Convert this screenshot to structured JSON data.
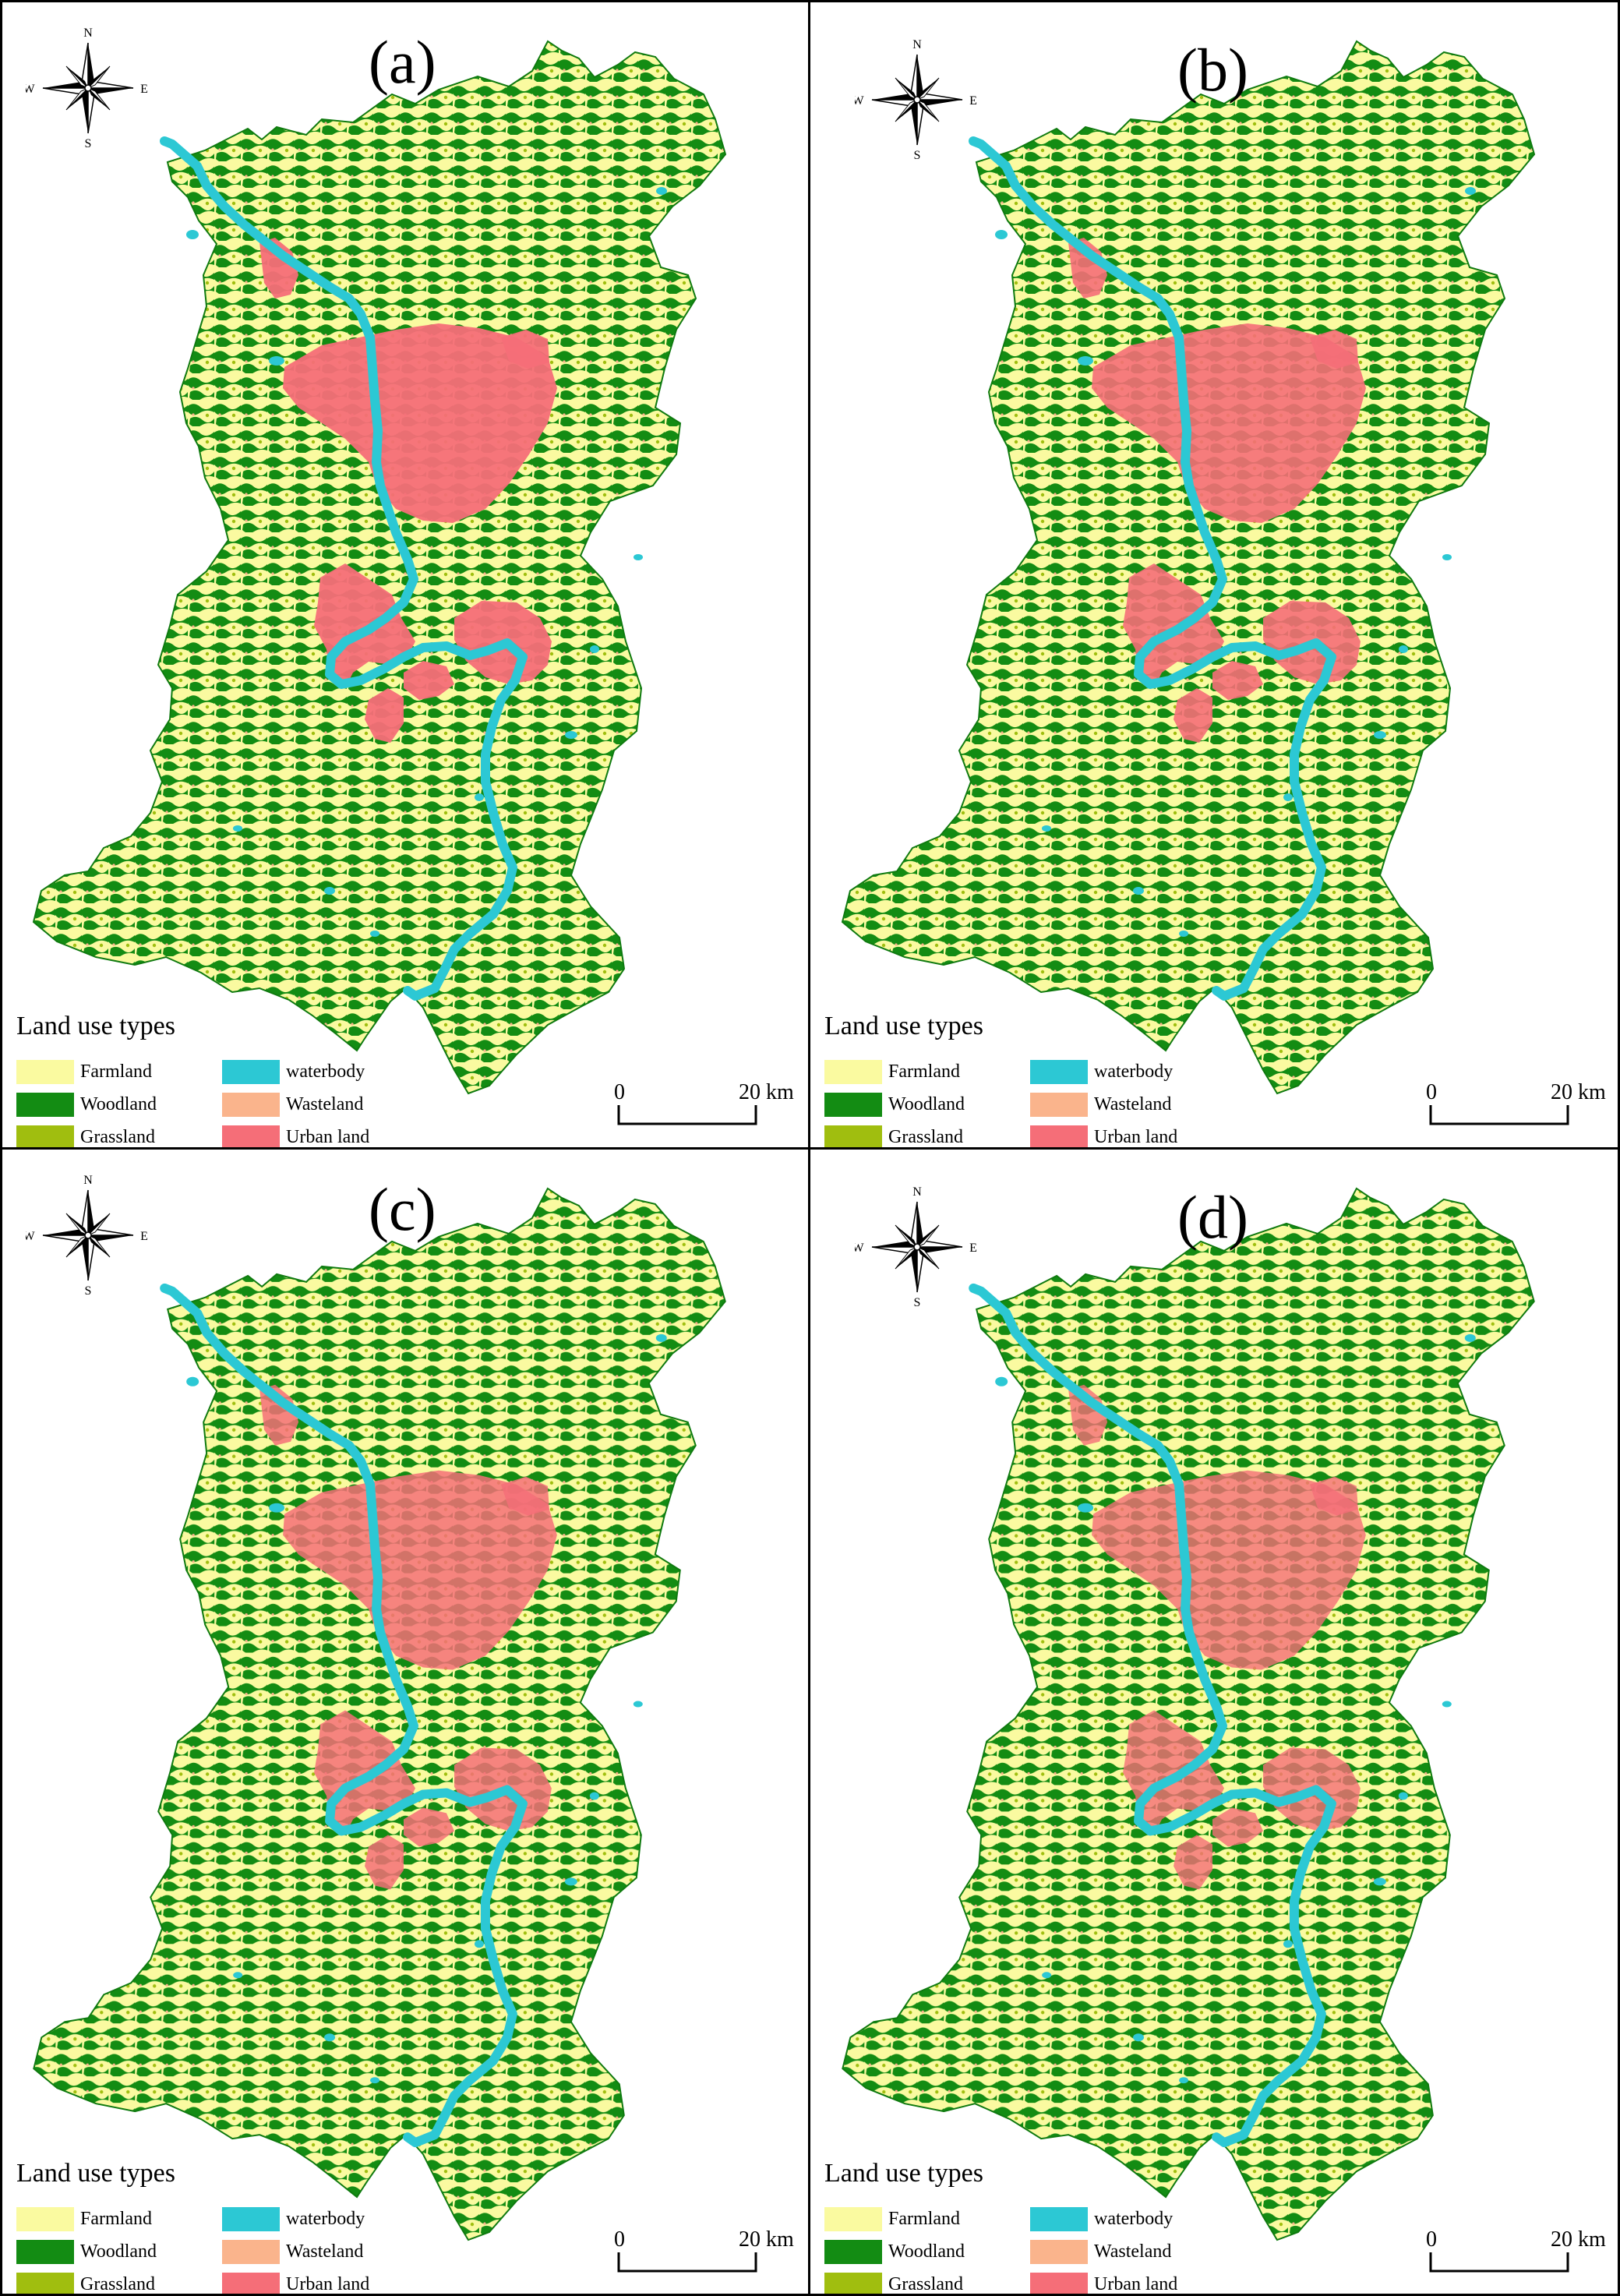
{
  "figure": {
    "panels": [
      {
        "label": "(a)"
      },
      {
        "label": "(b)"
      },
      {
        "label": "(c)"
      },
      {
        "label": "(d)"
      }
    ]
  },
  "compass": {
    "n": "N",
    "s": "S",
    "e": "E",
    "w": "W"
  },
  "legend": {
    "title": "Land use types",
    "items": [
      {
        "label": "Farmland",
        "color": "#fafaa0"
      },
      {
        "label": "Woodland",
        "color": "#138c13"
      },
      {
        "label": "Grassland",
        "color": "#a0be0f"
      },
      {
        "label": "waterbody",
        "color": "#2cc8d4"
      },
      {
        "label": "Wasteland",
        "color": "#fab48c"
      },
      {
        "label": "Urban land",
        "color": "#f56e78"
      }
    ]
  },
  "scalebar": {
    "zero": "0",
    "max": "20 km"
  }
}
